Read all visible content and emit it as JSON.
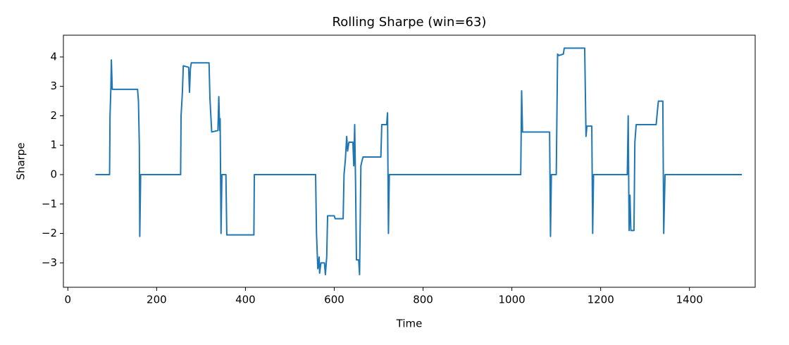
{
  "chart_data": {
    "type": "line",
    "title": "Rolling Sharpe (win=63)",
    "xlabel": "Time",
    "ylabel": "Sharpe",
    "x": [
      62,
      94,
      95,
      97,
      98,
      100,
      157,
      159,
      161,
      162,
      164,
      254,
      255,
      258,
      260,
      272,
      274,
      276,
      278,
      318,
      320,
      324,
      338,
      340,
      342,
      343,
      345,
      347,
      356,
      358,
      419,
      420,
      558,
      560,
      563,
      566,
      567,
      570,
      578,
      580,
      583,
      585,
      600,
      602,
      620,
      622,
      625,
      628,
      630,
      633,
      642,
      644,
      646,
      648,
      650,
      655,
      657,
      660,
      663,
      665,
      705,
      707,
      718,
      720,
      722,
      724,
      1020,
      1022,
      1024,
      1085,
      1087,
      1089,
      1100,
      1103,
      1106,
      1116,
      1118,
      1164,
      1167,
      1169,
      1180,
      1182,
      1184,
      1260,
      1262,
      1264,
      1266,
      1268,
      1275,
      1277,
      1280,
      1325,
      1328,
      1330,
      1340,
      1342,
      1345,
      1518
    ],
    "series": [
      {
        "name": "Sharpe",
        "color": "#1f77b4",
        "values": [
          0,
          0,
          2,
          3,
          3.9,
          2.9,
          2.9,
          2.5,
          1,
          -2.1,
          0,
          0,
          2,
          2.8,
          3.7,
          3.65,
          2.8,
          3.6,
          3.8,
          3.8,
          2.6,
          1.45,
          1.5,
          2.65,
          1.5,
          1.9,
          -2,
          0,
          0,
          -2.05,
          -2.05,
          0,
          0,
          -2,
          -3.2,
          -2.8,
          -3.35,
          -3,
          -3,
          -3.4,
          -2.8,
          -1.4,
          -1.4,
          -1.5,
          -1.5,
          0,
          0.5,
          1.3,
          0.8,
          1.1,
          1.1,
          0.3,
          1.7,
          -0.3,
          -2.9,
          -2.9,
          -3.4,
          0.3,
          0.5,
          0.6,
          0.6,
          1.7,
          1.7,
          2.1,
          -2,
          0,
          0,
          2.85,
          1.45,
          1.45,
          -2.1,
          0,
          0,
          4.1,
          4.05,
          4.1,
          4.3,
          4.3,
          1.3,
          1.65,
          1.65,
          -2,
          0,
          0,
          2,
          -1.9,
          -0.7,
          -1.9,
          -1.9,
          1.1,
          1.7,
          1.7,
          2.2,
          2.5,
          2.5,
          -2,
          0,
          0
        ]
      }
    ],
    "xlim": [
      -10,
      1548
    ],
    "ylim": [
      -3.83,
      4.74
    ],
    "xticks": [
      0,
      200,
      400,
      600,
      800,
      1000,
      1200,
      1400
    ],
    "yticks": [
      {
        "value": -3,
        "label": "−3"
      },
      {
        "value": -2,
        "label": "−2"
      },
      {
        "value": -1,
        "label": "−1"
      },
      0,
      1,
      2,
      3,
      4
    ]
  }
}
